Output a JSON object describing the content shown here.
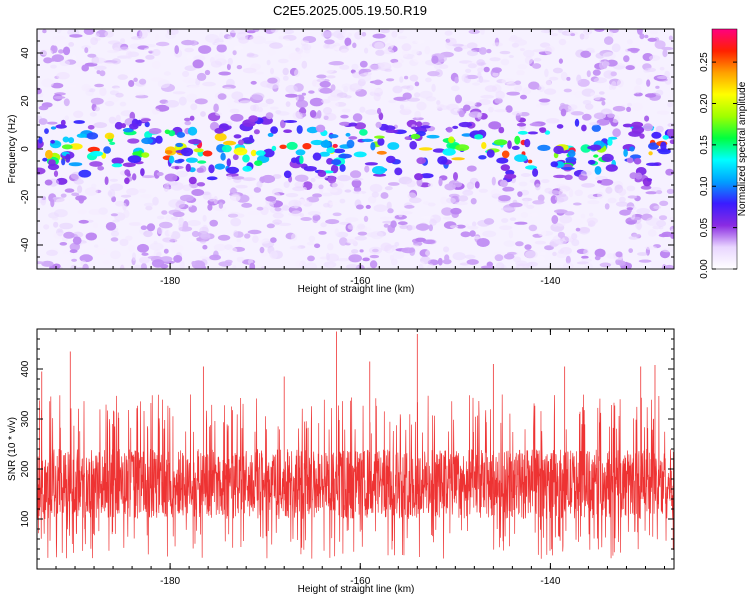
{
  "figure": {
    "title": "C2E5.2025.005.19.50.R19"
  },
  "chart_data": [
    {
      "type": "heatmap",
      "title": "C2E5.2025.005.19.50.R19",
      "xlabel": "Height of straight line (km)",
      "ylabel": "Frequency (Hz)",
      "xlim": [
        -194,
        -127
      ],
      "ylim": [
        -50,
        50
      ],
      "xticks": [
        -180,
        -160,
        -140
      ],
      "yticks": [
        -40,
        -20,
        0,
        20,
        40
      ],
      "description_of_values": {
        "signal_band_center_hz": 0,
        "signal_band_halfwidth_hz": 10,
        "peak_amplitude": 0.27,
        "background_amplitude": 0.02
      },
      "colorbar": {
        "label": "Normalized spectral amplitude",
        "range": [
          0,
          0.29
        ],
        "ticks": [
          "0.00",
          "0.05",
          "0.10",
          "0.15",
          "0.20",
          "0.25"
        ],
        "colors": [
          "#ffffff",
          "#e9d6ff",
          "#8a2be2",
          "#3a1cff",
          "#00a0ff",
          "#00ffff",
          "#00ff40",
          "#a0ff00",
          "#ffff00",
          "#ffa000",
          "#ff2000",
          "#ff0080"
        ]
      }
    },
    {
      "type": "line",
      "xlabel": "Height of straight line (km)",
      "ylabel": "SNR (10 * v/v)",
      "xlim": [
        -194,
        -127
      ],
      "ylim": [
        0,
        480
      ],
      "xticks": [
        -180,
        -160,
        -140
      ],
      "yticks": [
        100,
        200,
        300,
        400
      ],
      "series": [
        {
          "color": "#ee3333",
          "typical_band": [
            70,
            270
          ],
          "peaks": [
            {
              "x": -193.5,
              "y": 395
            },
            {
              "x": -190.5,
              "y": 435
            },
            {
              "x": -176.5,
              "y": 405
            },
            {
              "x": -168,
              "y": 385
            },
            {
              "x": -162.5,
              "y": 475
            },
            {
              "x": -159,
              "y": 415
            },
            {
              "x": -154,
              "y": 470
            },
            {
              "x": -146,
              "y": 410
            },
            {
              "x": -138.5,
              "y": 405
            },
            {
              "x": -130.5,
              "y": 405
            },
            {
              "x": -129,
              "y": 408
            }
          ]
        }
      ]
    }
  ]
}
